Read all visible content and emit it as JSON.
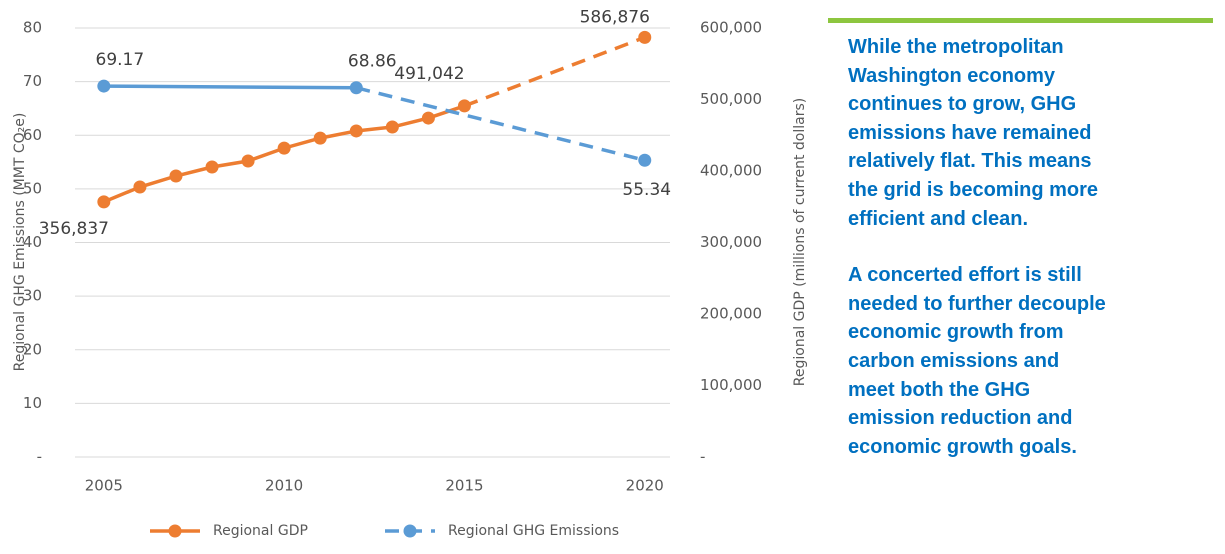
{
  "chart_data": {
    "type": "line",
    "xlim": [
      2004.2,
      2020.7
    ],
    "xticks": [
      2005,
      2010,
      2015,
      2020
    ],
    "ylim": [
      0,
      80
    ],
    "yticks": [
      {
        "value": 0,
        "label": "-"
      },
      10,
      20,
      30,
      40,
      50,
      60,
      70,
      80
    ],
    "y2lim": [
      0,
      600000
    ],
    "y2ticks": [
      {
        "value": 0,
        "label": "-"
      },
      {
        "value": 100000,
        "label": "100,000"
      },
      {
        "value": 200000,
        "label": "200,000"
      },
      {
        "value": 300000,
        "label": "300,000"
      },
      {
        "value": 400000,
        "label": "400,000"
      },
      {
        "value": 500000,
        "label": "500,000"
      },
      {
        "value": 600000,
        "label": "600,000"
      }
    ],
    "ylabel": "Regional GHG Emissions (MMT CO₂e)",
    "y2label": "Regional GDP (millions of current dollars)",
    "grid": true,
    "legend": "bottom",
    "series": [
      {
        "name": "Regional GDP",
        "color": "#ed7d31",
        "axis": "y2",
        "dashed_from": 2015,
        "x": [
          2005,
          2006,
          2007,
          2008,
          2009,
          2010,
          2011,
          2012,
          2013,
          2014,
          2015,
          2020
        ],
        "values": [
          356837,
          377600,
          393000,
          405600,
          414000,
          432000,
          446000,
          456000,
          461500,
          474000,
          491042,
          586876
        ],
        "value_labels": [
          "356,837",
          null,
          null,
          null,
          null,
          null,
          null,
          null,
          null,
          null,
          "491,042",
          "586,876"
        ]
      },
      {
        "name": "Regional GHG Emissions",
        "color": "#5b9bd5",
        "dashed_from": 2012,
        "x": [
          2005,
          2012,
          2020
        ],
        "values": [
          69.17,
          68.86,
          55.34
        ]
      }
    ]
  },
  "text": {
    "paragraphs": [
      [
        "While the metropolitan",
        "Washington economy",
        "continues to grow, GHG",
        "emissions have remained",
        "relatively flat. This means",
        "the grid is becoming more",
        "efficient and clean."
      ],
      [
        "A concerted effort is still",
        "needed to further decouple",
        "economic growth from",
        "carbon emissions and",
        "meet both the GHG",
        "emission reduction and",
        "economic growth goals."
      ]
    ]
  }
}
